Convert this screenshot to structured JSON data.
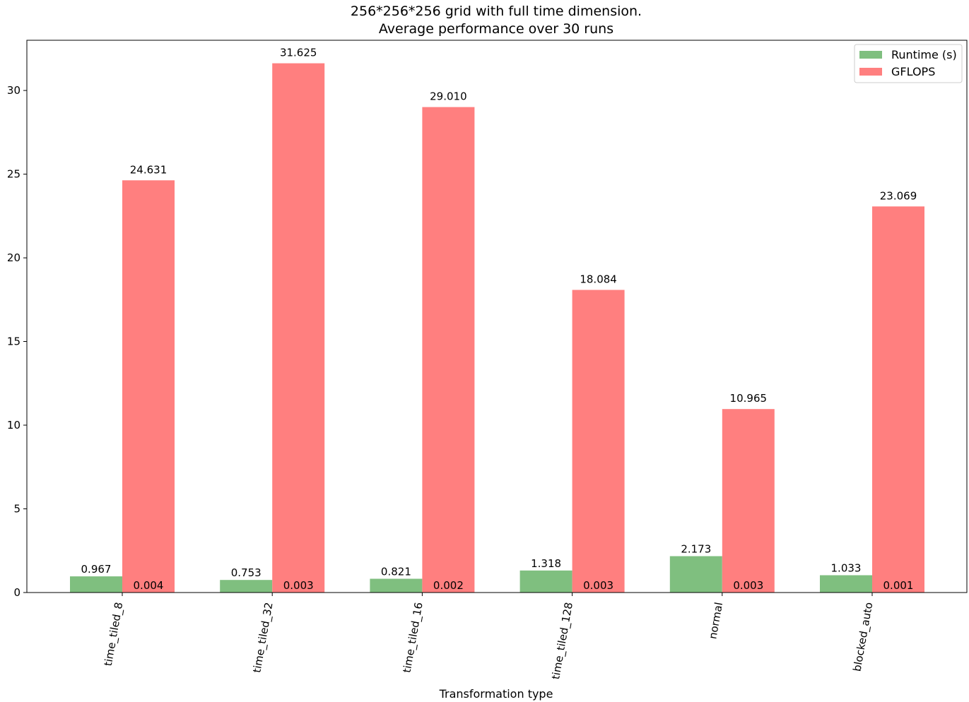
{
  "chart_data": {
    "type": "bar",
    "title": "256*256*256 grid with full time dimension.",
    "subtitle": "Average performance over 30 runs",
    "xlabel": "Transformation type",
    "ylabel": "",
    "ylim": [
      0,
      33
    ],
    "yticks": [
      0,
      5,
      10,
      15,
      20,
      25,
      30
    ],
    "grid": false,
    "legend_position": "top-right",
    "categories": [
      "time_tiled_8",
      "time_tiled_32",
      "time_tiled_16",
      "time_tiled_128",
      "normal",
      "blocked_auto"
    ],
    "series": [
      {
        "name": "Runtime (s)",
        "color": "#7fbf7f",
        "values": [
          0.967,
          0.753,
          0.821,
          1.318,
          2.173,
          1.033
        ],
        "labels": [
          "0.967",
          "0.753",
          "0.821",
          "1.318",
          "2.173",
          "1.033"
        ]
      },
      {
        "name": "GFLOPS",
        "color": "#ff7f7f",
        "values": [
          24.631,
          31.625,
          29.01,
          18.084,
          10.965,
          23.069
        ],
        "labels": [
          "24.631",
          "31.625",
          "29.010",
          "18.084",
          "10.965",
          "23.069"
        ]
      }
    ],
    "inner_labels": [
      "0.004",
      "0.003",
      "0.002",
      "0.003",
      "0.003",
      "0.001"
    ]
  }
}
